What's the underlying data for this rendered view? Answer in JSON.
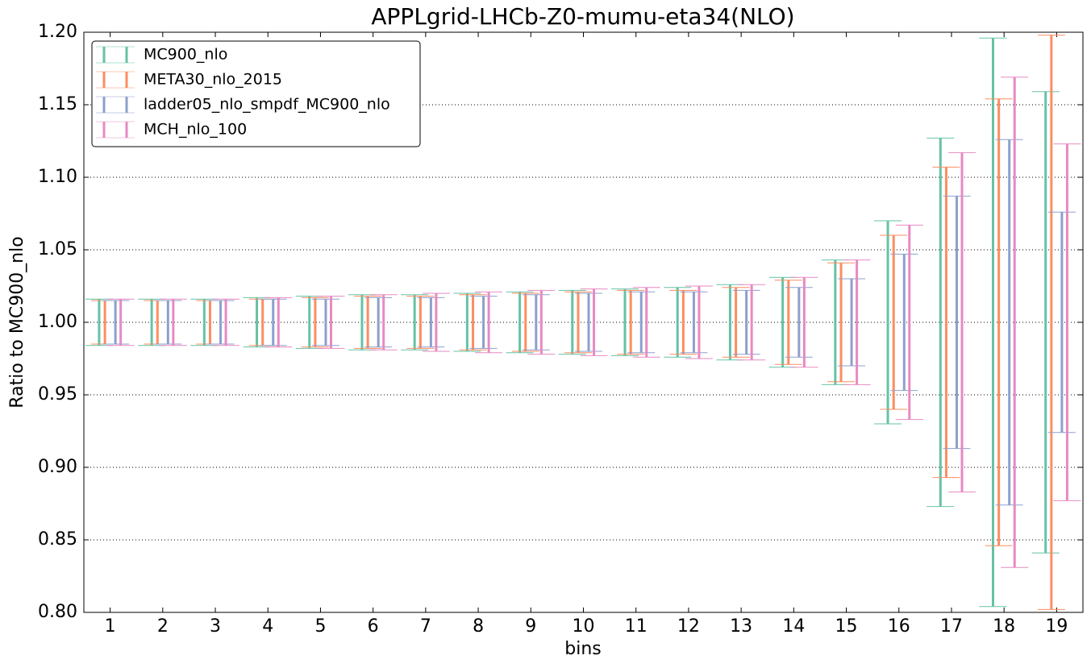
{
  "chart_data": {
    "type": "errorbar",
    "title": "APPLgrid-LHCb-Z0-mumu-eta34(NLO)",
    "x_label": "bins",
    "y_label": "Ratio to MC900_nlo",
    "categories": [
      "1",
      "2",
      "3",
      "4",
      "5",
      "6",
      "7",
      "8",
      "9",
      "10",
      "11",
      "12",
      "13",
      "14",
      "15",
      "16",
      "17",
      "18",
      "19"
    ],
    "series": [
      {
        "name": "MC900_nlo",
        "color": "#66c2a5",
        "high": [
          1.016,
          1.016,
          1.016,
          1.017,
          1.018,
          1.019,
          1.019,
          1.02,
          1.021,
          1.022,
          1.023,
          1.024,
          1.026,
          1.031,
          1.043,
          1.07,
          1.127,
          1.196,
          1.159
        ],
        "low": [
          0.984,
          0.984,
          0.984,
          0.983,
          0.982,
          0.981,
          0.981,
          0.98,
          0.979,
          0.978,
          0.977,
          0.976,
          0.974,
          0.969,
          0.957,
          0.93,
          0.873,
          0.804,
          0.841
        ]
      },
      {
        "name": "META30_nlo_2015",
        "color": "#fc8d62",
        "high": [
          1.015,
          1.015,
          1.015,
          1.016,
          1.017,
          1.018,
          1.018,
          1.019,
          1.02,
          1.021,
          1.022,
          1.022,
          1.024,
          1.029,
          1.041,
          1.06,
          1.107,
          1.154,
          1.198
        ],
        "low": [
          0.985,
          0.985,
          0.985,
          0.984,
          0.983,
          0.982,
          0.982,
          0.981,
          0.98,
          0.979,
          0.978,
          0.978,
          0.976,
          0.971,
          0.959,
          0.94,
          0.893,
          0.846,
          0.802
        ]
      },
      {
        "name": "ladder05_nlo_smpdf_MC900_nlo",
        "color": "#8da0cb",
        "high": [
          1.015,
          1.015,
          1.015,
          1.016,
          1.016,
          1.017,
          1.017,
          1.018,
          1.019,
          1.02,
          1.021,
          1.021,
          1.022,
          1.024,
          1.03,
          1.047,
          1.087,
          1.126,
          1.076
        ],
        "low": [
          0.985,
          0.985,
          0.985,
          0.984,
          0.984,
          0.983,
          0.983,
          0.982,
          0.981,
          0.98,
          0.979,
          0.979,
          0.978,
          0.976,
          0.97,
          0.953,
          0.913,
          0.874,
          0.924
        ]
      },
      {
        "name": "MCH_nlo_100",
        "color": "#e78ac3",
        "high": [
          1.016,
          1.016,
          1.016,
          1.017,
          1.018,
          1.019,
          1.02,
          1.021,
          1.022,
          1.023,
          1.024,
          1.025,
          1.026,
          1.031,
          1.043,
          1.067,
          1.117,
          1.169,
          1.123
        ],
        "low": [
          0.984,
          0.984,
          0.984,
          0.983,
          0.982,
          0.981,
          0.98,
          0.979,
          0.978,
          0.977,
          0.976,
          0.975,
          0.974,
          0.969,
          0.957,
          0.933,
          0.883,
          0.831,
          0.877
        ]
      }
    ],
    "ylim": [
      0.8,
      1.2
    ],
    "yticks": [
      {
        "value": 0.8,
        "label": "0.80"
      },
      {
        "value": 0.85,
        "label": "0.85"
      },
      {
        "value": 0.9,
        "label": "0.90"
      },
      {
        "value": 0.95,
        "label": "0.95"
      },
      {
        "value": 1.0,
        "label": "1.00"
      },
      {
        "value": 1.05,
        "label": "1.05"
      },
      {
        "value": 1.1,
        "label": "1.10"
      },
      {
        "value": 1.15,
        "label": "1.15"
      },
      {
        "value": 1.2,
        "label": "1.20"
      }
    ],
    "grid": true,
    "legend": "upper-left"
  }
}
